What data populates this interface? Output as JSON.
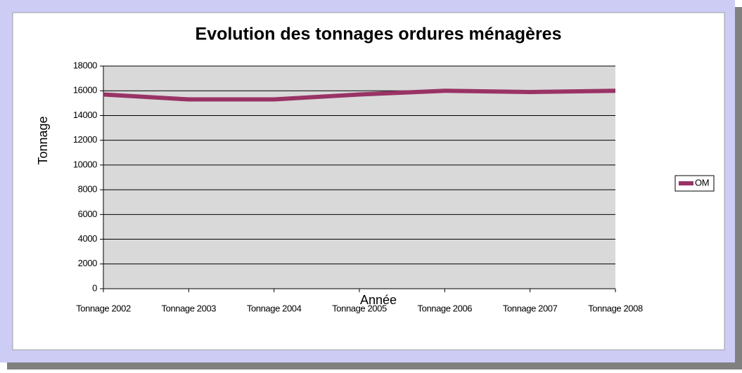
{
  "chart_data": {
    "type": "line",
    "title": "Evolution des tonnages ordures ménagères",
    "x_label": "Année",
    "y_label": "Tonnage",
    "categories": [
      "Tonnage 2002",
      "Tonnage 2003",
      "Tonnage 2004",
      "Tonnage 2005",
      "Tonnage 2006",
      "Tonnage 2007",
      "Tonnage 2008"
    ],
    "series": [
      {
        "name": "OM",
        "color": "#993366",
        "values": [
          15700,
          15300,
          15300,
          15700,
          16000,
          15900,
          16000
        ]
      }
    ],
    "ylim": [
      0,
      18000
    ],
    "yticks": [
      0,
      2000,
      4000,
      6000,
      8000,
      10000,
      12000,
      14000,
      16000,
      18000
    ],
    "grid": true,
    "legend": "right"
  }
}
